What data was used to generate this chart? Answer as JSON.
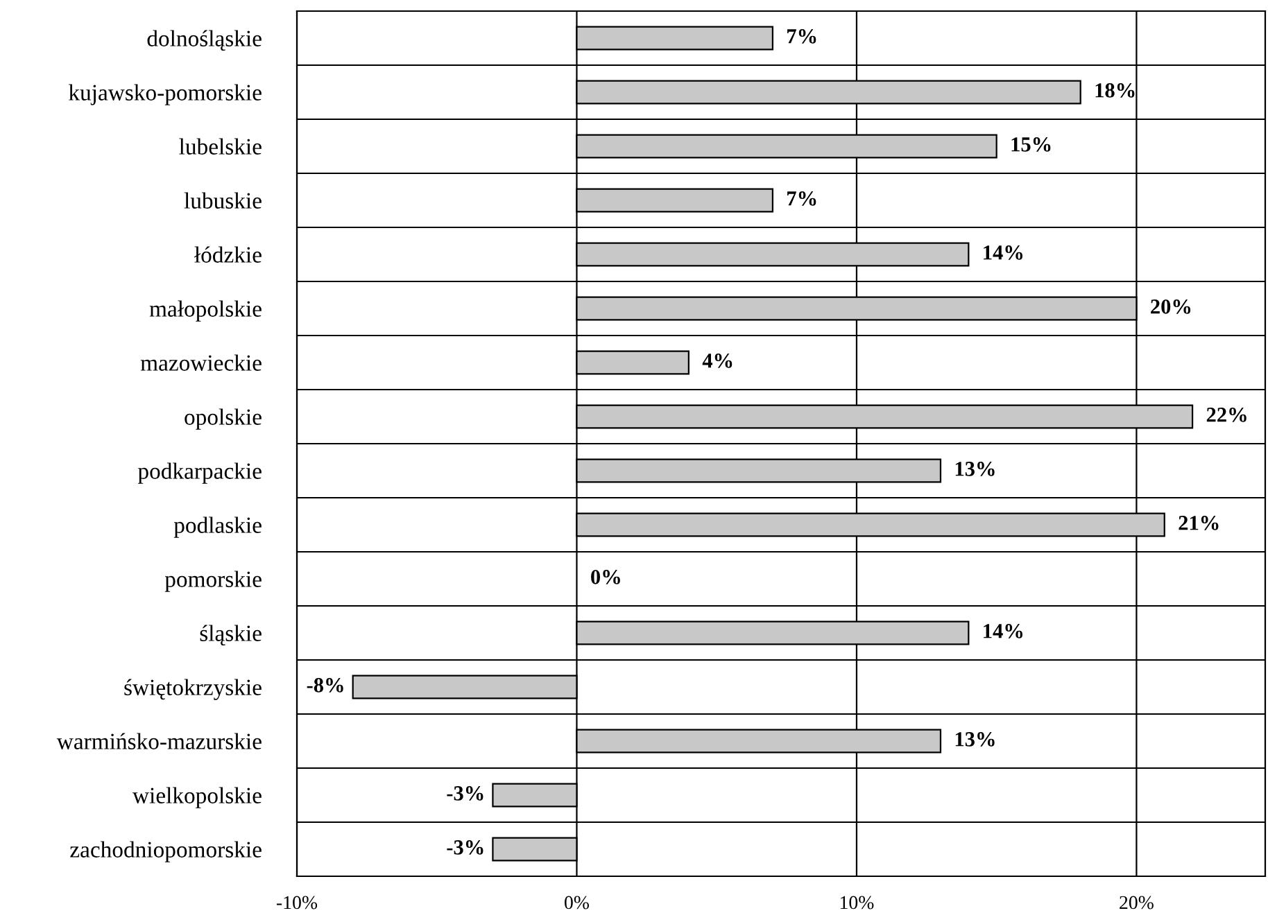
{
  "chart_data": {
    "type": "bar",
    "orientation": "horizontal",
    "categories": [
      "dolnośląskie",
      "kujawsko-pomorskie",
      "lubelskie",
      "lubuskie",
      "łódzkie",
      "małopolskie",
      "mazowieckie",
      "opolskie",
      "podkarpackie",
      "podlaskie",
      "pomorskie",
      "śląskie",
      "świętokrzyskie",
      "warmińsko-mazurskie",
      "wielkopolskie",
      "zachodniopomorskie"
    ],
    "values": [
      7,
      18,
      15,
      7,
      14,
      20,
      4,
      22,
      13,
      21,
      0,
      14,
      -8,
      13,
      -3,
      -3
    ],
    "value_labels": [
      "7%",
      "18%",
      "15%",
      "7%",
      "14%",
      "20%",
      "4%",
      "22%",
      "13%",
      "21%",
      "0%",
      "14%",
      "-8%",
      "13%",
      "-3%",
      "-3%"
    ],
    "color": "#c8c8c8",
    "xlim": [
      -10,
      24.6
    ],
    "xticks": [
      {
        "value": -10,
        "label": "-10%"
      },
      {
        "value": 0,
        "label": "0%"
      },
      {
        "value": 10,
        "label": "10%"
      },
      {
        "value": 20,
        "label": "20%"
      }
    ],
    "grid": true
  }
}
